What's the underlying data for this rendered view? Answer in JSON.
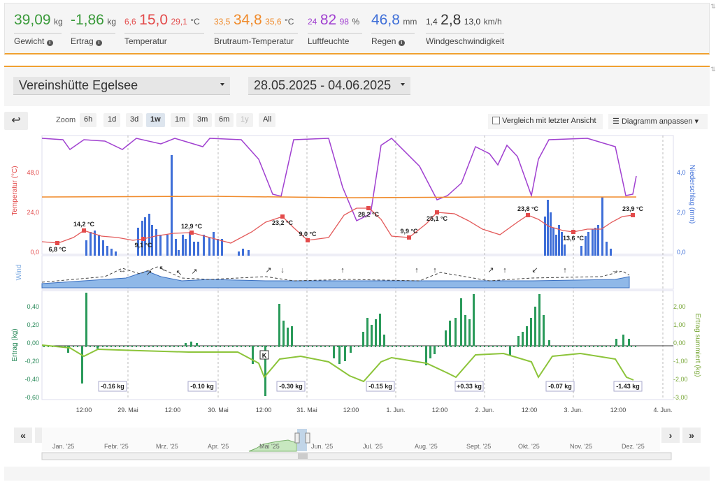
{
  "stats": [
    {
      "pre": "",
      "value": "39,09",
      "post": "",
      "unit": "kg",
      "label": "Gewicht",
      "info": true,
      "color": "#3a9a3a"
    },
    {
      "pre": "",
      "value": "-1,86",
      "post": "",
      "unit": "kg",
      "label": "Ertrag",
      "info": true,
      "color": "#3a9a3a"
    },
    {
      "pre": "6,6",
      "value": "15,0",
      "post": "29,1",
      "unit": "°C",
      "label": "Temperatur",
      "info": false,
      "color": "#e34b4b"
    },
    {
      "pre": "33,5",
      "value": "34,8",
      "post": "35,6",
      "unit": "°C",
      "label": "Brutraum-Temperatur",
      "info": false,
      "color": "#f08a2a"
    },
    {
      "pre": "24",
      "value": "82",
      "post": "98",
      "unit": "%",
      "label": "Luftfeuchte",
      "info": false,
      "color": "#a040d0"
    },
    {
      "pre": "",
      "value": "46,8",
      "post": "",
      "unit": "mm",
      "label": "Regen",
      "info": true,
      "color": "#3f6fd8"
    },
    {
      "pre": "1,4",
      "value": "2,8",
      "post": "13,0",
      "unit": "km/h",
      "label": "Windgeschwindigkeit",
      "info": false,
      "color": "#333333"
    }
  ],
  "location": "Vereinshütte Egelsee",
  "daterange": "28.05.2025 - 04.06.2025",
  "zoom": {
    "label": "Zoom",
    "buttons": [
      "6h",
      "1d",
      "3d",
      "1w",
      "1m",
      "3m",
      "6m",
      "1y",
      "All"
    ],
    "active": "1w",
    "disabled": "1y"
  },
  "compare_label": "Vergleich mit letzter Ansicht",
  "customize_label": "Diagramm anpassen",
  "chart_data": {
    "type": "line",
    "x_labels": [
      "12:00",
      "29. Mai",
      "12:00",
      "30. Mai",
      "12:00",
      "31. Mai",
      "12:00",
      "1. Jun.",
      "12:00",
      "2. Jun.",
      "12:00",
      "3. Jun.",
      "12:00",
      "4. Jun."
    ],
    "temp_axis": {
      "label": "Temperatur (°C)",
      "ticks": [
        "48,0",
        "24,0",
        "0,0"
      ]
    },
    "rain_axis": {
      "label": "Niederschlag (mm)",
      "ticks": [
        "4,0",
        "2,0",
        "0,0"
      ]
    },
    "wind_label": "Wind",
    "ertrag_axis": {
      "label": "Ertrag (kg)",
      "ticks": [
        "0,40",
        "0,20",
        "0,00",
        "-0,20",
        "-0,40",
        "-0,60"
      ]
    },
    "ertrag_sum_axis": {
      "label": "Ertrag summiert (kg)",
      "ticks": [
        "2,00",
        "1,00",
        "0,00",
        "-1,00",
        "-2,00",
        "-3,00"
      ]
    },
    "temp_labels": [
      "6,8 °C",
      "14,2 °C",
      "9,1 °C",
      "12,9 °C",
      "23,2 °C",
      "9,0 °C",
      "28,2 °C",
      "9,9 °C",
      "25,1 °C",
      "23,8 °C",
      "13,6 °C",
      "23,9 °C"
    ],
    "daily_ertrag": [
      "-0.16 kg",
      "-0.10 kg",
      "-0.30 kg",
      "-0.15 kg",
      "+0.33 kg",
      "-0.07 kg",
      "-1.43 kg"
    ],
    "marker_k": "K"
  },
  "navigator": {
    "months": [
      "Jan. '25",
      "Febr. '25",
      "Mrz. '25",
      "Apr. '25",
      "Mai '25",
      "Jun. '25",
      "Jul. '25",
      "Aug. '25",
      "Sept. '25",
      "Okt. '25",
      "Nov. '25",
      "Dez. '25"
    ]
  }
}
